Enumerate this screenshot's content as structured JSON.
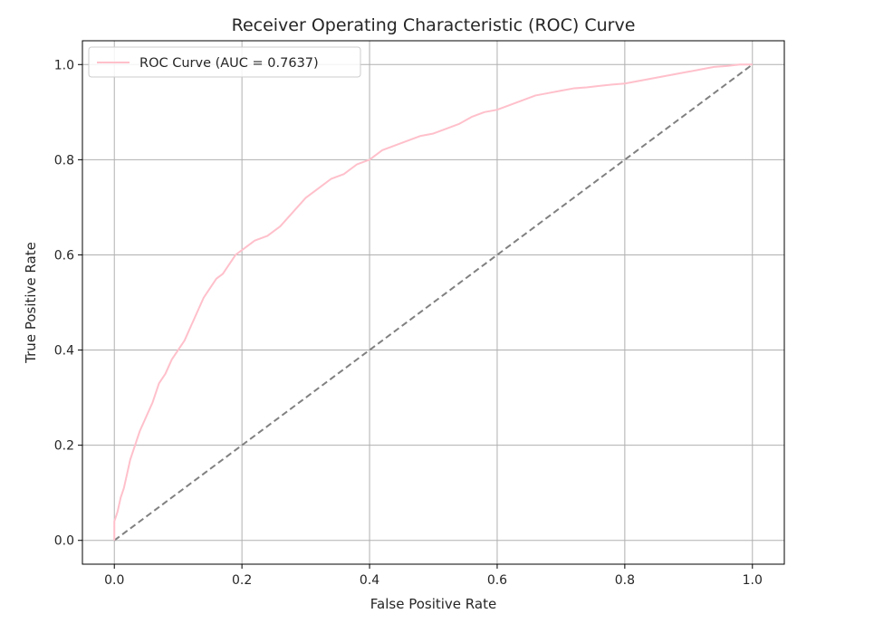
{
  "chart_data": {
    "type": "line",
    "title": "Receiver Operating Characteristic (ROC) Curve",
    "xlabel": "False Positive Rate",
    "ylabel": "True Positive Rate",
    "xlim": [
      -0.05,
      1.05
    ],
    "ylim": [
      -0.05,
      1.05
    ],
    "xticks": [
      0.0,
      0.2,
      0.4,
      0.6,
      0.8,
      1.0
    ],
    "yticks": [
      0.0,
      0.2,
      0.4,
      0.6,
      0.8,
      1.0
    ],
    "xtick_labels": [
      "0.0",
      "0.2",
      "0.4",
      "0.6",
      "0.8",
      "1.0"
    ],
    "ytick_labels": [
      "0.0",
      "0.2",
      "0.4",
      "0.6",
      "0.8",
      "1.0"
    ],
    "grid": true,
    "legend_position": "upper-left",
    "series": [
      {
        "name": "ROC Curve (AUC = 0.7637)",
        "color": "#ffc0cb",
        "style": "solid",
        "x": [
          0.0,
          0.0,
          0.005,
          0.01,
          0.015,
          0.02,
          0.025,
          0.03,
          0.035,
          0.04,
          0.05,
          0.06,
          0.07,
          0.08,
          0.09,
          0.1,
          0.11,
          0.12,
          0.13,
          0.14,
          0.15,
          0.16,
          0.17,
          0.18,
          0.19,
          0.2,
          0.22,
          0.24,
          0.26,
          0.28,
          0.3,
          0.32,
          0.34,
          0.36,
          0.38,
          0.4,
          0.42,
          0.44,
          0.46,
          0.48,
          0.5,
          0.52,
          0.54,
          0.56,
          0.58,
          0.6,
          0.62,
          0.64,
          0.66,
          0.68,
          0.7,
          0.72,
          0.74,
          0.76,
          0.78,
          0.8,
          0.82,
          0.84,
          0.86,
          0.88,
          0.9,
          0.92,
          0.94,
          0.96,
          0.98,
          1.0
        ],
        "y": [
          0.0,
          0.04,
          0.06,
          0.09,
          0.11,
          0.14,
          0.17,
          0.19,
          0.21,
          0.23,
          0.26,
          0.29,
          0.33,
          0.35,
          0.38,
          0.4,
          0.42,
          0.45,
          0.48,
          0.51,
          0.53,
          0.55,
          0.56,
          0.58,
          0.6,
          0.61,
          0.63,
          0.64,
          0.66,
          0.69,
          0.72,
          0.74,
          0.76,
          0.77,
          0.79,
          0.8,
          0.82,
          0.83,
          0.84,
          0.85,
          0.855,
          0.865,
          0.875,
          0.89,
          0.9,
          0.905,
          0.915,
          0.925,
          0.935,
          0.94,
          0.945,
          0.95,
          0.952,
          0.955,
          0.958,
          0.96,
          0.965,
          0.97,
          0.975,
          0.98,
          0.985,
          0.99,
          0.995,
          0.997,
          1.0,
          1.0
        ]
      },
      {
        "name": "",
        "color": "#808080",
        "style": "dashed",
        "x": [
          0.0,
          1.0
        ],
        "y": [
          0.0,
          1.0
        ]
      }
    ]
  }
}
